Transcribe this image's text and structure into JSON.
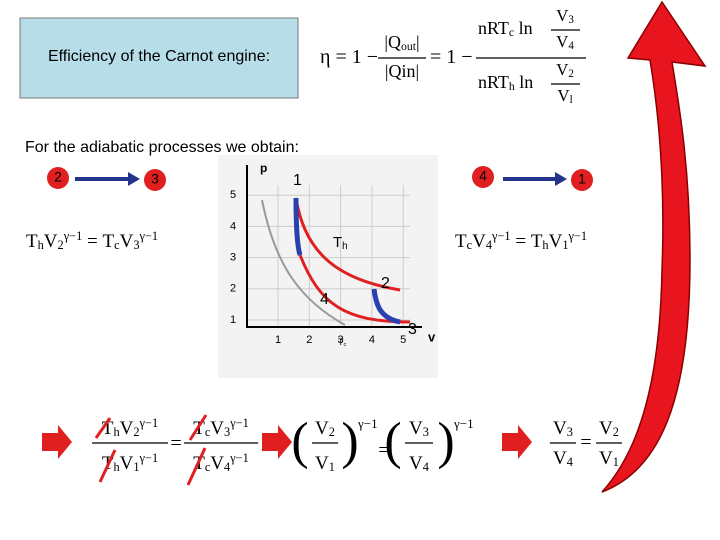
{
  "box_title": "Efficiency of the Carnot engine:",
  "efficiency": {
    "lhs": [
      {
        "t": "η = 1 −"
      }
    ],
    "q_out": [
      {
        "t": "|Q"
      },
      {
        "sub": "out"
      },
      {
        "t": "|"
      }
    ],
    "q_in": [
      {
        "t": "|Qin|"
      }
    ],
    "mid": [
      {
        "t": "= 1 −"
      }
    ],
    "num": [
      {
        "t": "nRT"
      },
      {
        "sub": "c"
      },
      {
        "t": " ln"
      }
    ],
    "num_v_top": [
      {
        "t": "V"
      },
      {
        "sub": "3"
      }
    ],
    "num_v_bottom": [
      {
        "t": "V"
      },
      {
        "sub": "4"
      }
    ],
    "den": [
      {
        "t": "nRT"
      },
      {
        "sub": "h"
      },
      {
        "t": " ln"
      }
    ],
    "den_v_top": [
      {
        "t": "V"
      },
      {
        "sub": "2"
      }
    ],
    "den_v_bottom": [
      {
        "t": "V"
      },
      {
        "sub": "l"
      }
    ]
  },
  "adiabatic_heading": "For the adiabatic processes we obtain:",
  "left_states": [
    "2",
    "3"
  ],
  "right_states": [
    "4",
    "1"
  ],
  "left_equation": [
    {
      "t": "T"
    },
    {
      "sub": "h"
    },
    {
      "t": "V"
    },
    {
      "sub": "2"
    },
    {
      "sup": "γ−1"
    },
    {
      "t": " = "
    },
    {
      "t": "T"
    },
    {
      "sub": "c"
    },
    {
      "t": "V"
    },
    {
      "sub": "3"
    },
    {
      "sup": "γ−1"
    }
  ],
  "right_equation": [
    {
      "t": "T"
    },
    {
      "sub": "c"
    },
    {
      "t": "V"
    },
    {
      "sub": "4"
    },
    {
      "sup": "γ−1"
    },
    {
      "t": " = "
    },
    {
      "t": "T"
    },
    {
      "sub": "h"
    },
    {
      "t": "V"
    },
    {
      "sub": "1"
    },
    {
      "sup": "γ−1"
    }
  ],
  "graph": {
    "y_axis": "p",
    "x_axis": "v",
    "x_ticks": [
      1,
      2,
      3,
      4,
      5
    ],
    "y_ticks": [
      1,
      2,
      3,
      4,
      5
    ],
    "point_labels": [
      "1",
      "2",
      "3",
      "4"
    ],
    "hot": [
      {
        "t": "T"
      },
      {
        "sub": "h"
      }
    ],
    "cold": [
      {
        "t": "T"
      },
      {
        "sub": "c"
      }
    ]
  },
  "derivation": {
    "a_num": [
      {
        "t": "T"
      },
      {
        "sub": "h"
      },
      {
        "t": "V"
      },
      {
        "sub": "2"
      },
      {
        "sup": "γ−1"
      }
    ],
    "a_den": [
      {
        "t": "T"
      },
      {
        "sub": "h"
      },
      {
        "t": "V"
      },
      {
        "sub": "1"
      },
      {
        "sup": "γ−1"
      }
    ],
    "eq1": "=",
    "b_num": [
      {
        "t": "T"
      },
      {
        "sub": "c"
      },
      {
        "t": "V"
      },
      {
        "sub": "3"
      },
      {
        "sup": "γ−1"
      }
    ],
    "b_den": [
      {
        "t": "T"
      },
      {
        "sub": "c"
      },
      {
        "t": "V"
      },
      {
        "sub": "4"
      },
      {
        "sup": "γ−1"
      }
    ],
    "open": "(",
    "close": ")",
    "power": "γ−1",
    "c_num": [
      {
        "t": "V"
      },
      {
        "sub": "2"
      }
    ],
    "c_den": [
      {
        "t": "V"
      },
      {
        "sub": "1"
      }
    ],
    "eq2": "=",
    "d_num": [
      {
        "t": "V"
      },
      {
        "sub": "3"
      }
    ],
    "d_den": [
      {
        "t": "V"
      },
      {
        "sub": "4"
      }
    ],
    "e_num": [
      {
        "t": "V"
      },
      {
        "sub": "3"
      }
    ],
    "e_den": [
      {
        "t": "V"
      },
      {
        "sub": "4"
      }
    ],
    "eq3": "=",
    "f_num": [
      {
        "t": "V"
      },
      {
        "sub": "2"
      }
    ],
    "f_den": [
      {
        "t": "V"
      },
      {
        "sub": "1"
      }
    ]
  }
}
